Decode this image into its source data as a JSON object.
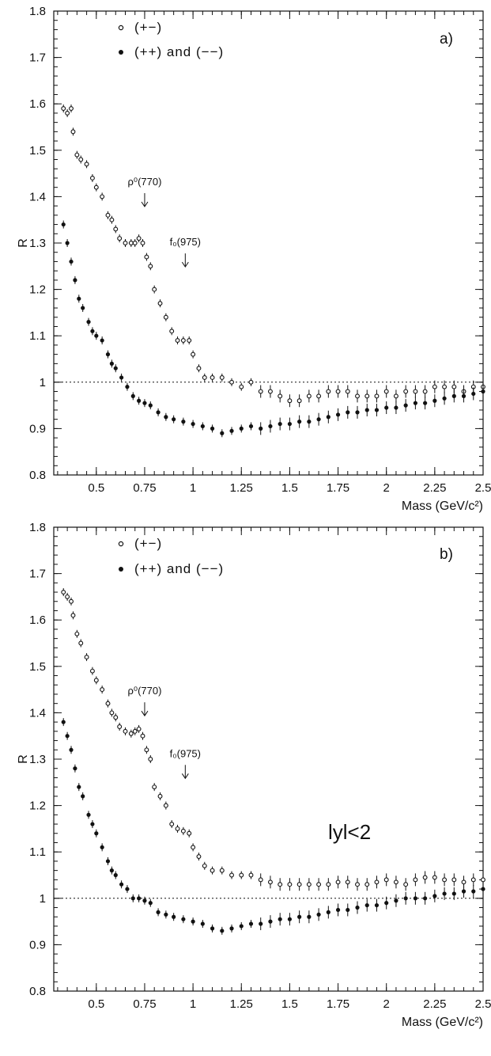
{
  "chart_data": [
    {
      "type": "scatter",
      "panel_label": "a)",
      "ylabel": "R",
      "xlabel": "Mass (GeV/c²)",
      "xlim": [
        0.28,
        2.5
      ],
      "ylim": [
        0.8,
        1.8
      ],
      "x_ticks": [
        "0.5",
        "0.75",
        "1",
        "1.25",
        "1.5",
        "1.75",
        "2",
        "2.25",
        "2.5"
      ],
      "y_ticks": [
        "0.8",
        "0.9",
        "1",
        "1.1",
        "1.2",
        "1.3",
        "1.4",
        "1.5",
        "1.6",
        "1.7",
        "1.8"
      ],
      "reference_line": 1,
      "annotations": [
        {
          "text": "ρ⁰(770)",
          "x": 0.75,
          "y_arrow": 1.37
        },
        {
          "text": "f₀(975)",
          "x": 0.96,
          "y_arrow": 1.24
        }
      ],
      "series": [
        {
          "name": "(+−)",
          "marker": "open",
          "points": [
            [
              0.33,
              1.59
            ],
            [
              0.35,
              1.58
            ],
            [
              0.37,
              1.59
            ],
            [
              0.38,
              1.54
            ],
            [
              0.4,
              1.49
            ],
            [
              0.42,
              1.48
            ],
            [
              0.45,
              1.47
            ],
            [
              0.48,
              1.44
            ],
            [
              0.5,
              1.42
            ],
            [
              0.53,
              1.4
            ],
            [
              0.56,
              1.36
            ],
            [
              0.58,
              1.35
            ],
            [
              0.6,
              1.33
            ],
            [
              0.62,
              1.31
            ],
            [
              0.65,
              1.3
            ],
            [
              0.68,
              1.3
            ],
            [
              0.7,
              1.3
            ],
            [
              0.72,
              1.31
            ],
            [
              0.74,
              1.3
            ],
            [
              0.76,
              1.27
            ],
            [
              0.78,
              1.25
            ],
            [
              0.8,
              1.2
            ],
            [
              0.83,
              1.17
            ],
            [
              0.86,
              1.14
            ],
            [
              0.89,
              1.11
            ],
            [
              0.92,
              1.09
            ],
            [
              0.95,
              1.09
            ],
            [
              0.98,
              1.09
            ],
            [
              1.0,
              1.06
            ],
            [
              1.03,
              1.03
            ],
            [
              1.06,
              1.01
            ],
            [
              1.1,
              1.01
            ],
            [
              1.15,
              1.01
            ],
            [
              1.2,
              1.0
            ],
            [
              1.25,
              0.99
            ],
            [
              1.3,
              1.0
            ],
            [
              1.35,
              0.98
            ],
            [
              1.4,
              0.98
            ],
            [
              1.45,
              0.97
            ],
            [
              1.5,
              0.96
            ],
            [
              1.55,
              0.96
            ],
            [
              1.6,
              0.97
            ],
            [
              1.65,
              0.97
            ],
            [
              1.7,
              0.98
            ],
            [
              1.75,
              0.98
            ],
            [
              1.8,
              0.98
            ],
            [
              1.85,
              0.97
            ],
            [
              1.9,
              0.97
            ],
            [
              1.95,
              0.97
            ],
            [
              2.0,
              0.98
            ],
            [
              2.05,
              0.97
            ],
            [
              2.1,
              0.98
            ],
            [
              2.15,
              0.98
            ],
            [
              2.2,
              0.98
            ],
            [
              2.25,
              0.99
            ],
            [
              2.3,
              0.99
            ],
            [
              2.35,
              0.99
            ],
            [
              2.4,
              0.98
            ],
            [
              2.45,
              0.99
            ],
            [
              2.5,
              0.99
            ]
          ]
        },
        {
          "name": "(++) and (−−)",
          "marker": "filled",
          "points": [
            [
              0.33,
              1.34
            ],
            [
              0.35,
              1.3
            ],
            [
              0.37,
              1.26
            ],
            [
              0.39,
              1.22
            ],
            [
              0.41,
              1.18
            ],
            [
              0.43,
              1.16
            ],
            [
              0.46,
              1.13
            ],
            [
              0.48,
              1.11
            ],
            [
              0.5,
              1.1
            ],
            [
              0.53,
              1.09
            ],
            [
              0.56,
              1.06
            ],
            [
              0.58,
              1.04
            ],
            [
              0.6,
              1.03
            ],
            [
              0.63,
              1.01
            ],
            [
              0.66,
              0.99
            ],
            [
              0.69,
              0.97
            ],
            [
              0.72,
              0.96
            ],
            [
              0.75,
              0.955
            ],
            [
              0.78,
              0.95
            ],
            [
              0.82,
              0.935
            ],
            [
              0.86,
              0.925
            ],
            [
              0.9,
              0.92
            ],
            [
              0.95,
              0.915
            ],
            [
              1.0,
              0.91
            ],
            [
              1.05,
              0.905
            ],
            [
              1.1,
              0.9
            ],
            [
              1.15,
              0.89
            ],
            [
              1.2,
              0.895
            ],
            [
              1.25,
              0.9
            ],
            [
              1.3,
              0.905
            ],
            [
              1.35,
              0.9
            ],
            [
              1.4,
              0.905
            ],
            [
              1.45,
              0.91
            ],
            [
              1.5,
              0.91
            ],
            [
              1.55,
              0.915
            ],
            [
              1.6,
              0.915
            ],
            [
              1.65,
              0.92
            ],
            [
              1.7,
              0.925
            ],
            [
              1.75,
              0.93
            ],
            [
              1.8,
              0.935
            ],
            [
              1.85,
              0.935
            ],
            [
              1.9,
              0.94
            ],
            [
              1.95,
              0.94
            ],
            [
              2.0,
              0.945
            ],
            [
              2.05,
              0.945
            ],
            [
              2.1,
              0.95
            ],
            [
              2.15,
              0.955
            ],
            [
              2.2,
              0.955
            ],
            [
              2.25,
              0.96
            ],
            [
              2.3,
              0.965
            ],
            [
              2.35,
              0.97
            ],
            [
              2.4,
              0.97
            ],
            [
              2.45,
              0.975
            ],
            [
              2.5,
              0.98
            ]
          ]
        }
      ]
    },
    {
      "type": "scatter",
      "panel_label": "b)",
      "ylabel": "R",
      "xlabel": "Mass (GeV/c²)",
      "xlim": [
        0.28,
        2.5
      ],
      "ylim": [
        0.8,
        1.8
      ],
      "x_ticks": [
        "0.5",
        "0.75",
        "1",
        "1.25",
        "1.5",
        "1.75",
        "2",
        "2.25",
        "2.5"
      ],
      "y_ticks": [
        "0.8",
        "0.9",
        "1",
        "1.1",
        "1.2",
        "1.3",
        "1.4",
        "1.5",
        "1.6",
        "1.7",
        "1.8"
      ],
      "reference_line": 1,
      "cut_label": "lyl<2",
      "annotations": [
        {
          "text": "ρ⁰(770)",
          "x": 0.75,
          "y_arrow": 1.385
        },
        {
          "text": "f₀(975)",
          "x": 0.96,
          "y_arrow": 1.25
        }
      ],
      "series": [
        {
          "name": "(+−)",
          "marker": "open",
          "points": [
            [
              0.33,
              1.66
            ],
            [
              0.35,
              1.65
            ],
            [
              0.37,
              1.64
            ],
            [
              0.38,
              1.61
            ],
            [
              0.4,
              1.57
            ],
            [
              0.42,
              1.55
            ],
            [
              0.45,
              1.52
            ],
            [
              0.48,
              1.49
            ],
            [
              0.5,
              1.47
            ],
            [
              0.53,
              1.45
            ],
            [
              0.56,
              1.42
            ],
            [
              0.58,
              1.4
            ],
            [
              0.6,
              1.39
            ],
            [
              0.62,
              1.37
            ],
            [
              0.65,
              1.36
            ],
            [
              0.68,
              1.355
            ],
            [
              0.7,
              1.36
            ],
            [
              0.72,
              1.365
            ],
            [
              0.74,
              1.35
            ],
            [
              0.76,
              1.32
            ],
            [
              0.78,
              1.3
            ],
            [
              0.8,
              1.24
            ],
            [
              0.83,
              1.22
            ],
            [
              0.86,
              1.2
            ],
            [
              0.89,
              1.16
            ],
            [
              0.92,
              1.15
            ],
            [
              0.95,
              1.145
            ],
            [
              0.98,
              1.14
            ],
            [
              1.0,
              1.11
            ],
            [
              1.03,
              1.09
            ],
            [
              1.06,
              1.07
            ],
            [
              1.1,
              1.06
            ],
            [
              1.15,
              1.06
            ],
            [
              1.2,
              1.05
            ],
            [
              1.25,
              1.05
            ],
            [
              1.3,
              1.05
            ],
            [
              1.35,
              1.04
            ],
            [
              1.4,
              1.035
            ],
            [
              1.45,
              1.03
            ],
            [
              1.5,
              1.03
            ],
            [
              1.55,
              1.03
            ],
            [
              1.6,
              1.03
            ],
            [
              1.65,
              1.03
            ],
            [
              1.7,
              1.03
            ],
            [
              1.75,
              1.035
            ],
            [
              1.8,
              1.035
            ],
            [
              1.85,
              1.03
            ],
            [
              1.9,
              1.03
            ],
            [
              1.95,
              1.035
            ],
            [
              2.0,
              1.04
            ],
            [
              2.05,
              1.035
            ],
            [
              2.1,
              1.03
            ],
            [
              2.15,
              1.04
            ],
            [
              2.2,
              1.045
            ],
            [
              2.25,
              1.045
            ],
            [
              2.3,
              1.04
            ],
            [
              2.35,
              1.04
            ],
            [
              2.4,
              1.035
            ],
            [
              2.45,
              1.04
            ],
            [
              2.5,
              1.04
            ]
          ]
        },
        {
          "name": "(++) and (−−)",
          "marker": "filled",
          "points": [
            [
              0.33,
              1.38
            ],
            [
              0.35,
              1.35
            ],
            [
              0.37,
              1.32
            ],
            [
              0.39,
              1.28
            ],
            [
              0.41,
              1.24
            ],
            [
              0.43,
              1.22
            ],
            [
              0.46,
              1.18
            ],
            [
              0.48,
              1.16
            ],
            [
              0.5,
              1.14
            ],
            [
              0.53,
              1.11
            ],
            [
              0.56,
              1.08
            ],
            [
              0.58,
              1.06
            ],
            [
              0.6,
              1.05
            ],
            [
              0.63,
              1.03
            ],
            [
              0.66,
              1.02
            ],
            [
              0.69,
              1.0
            ],
            [
              0.72,
              1.0
            ],
            [
              0.75,
              0.995
            ],
            [
              0.78,
              0.99
            ],
            [
              0.82,
              0.97
            ],
            [
              0.86,
              0.965
            ],
            [
              0.9,
              0.96
            ],
            [
              0.95,
              0.955
            ],
            [
              1.0,
              0.95
            ],
            [
              1.05,
              0.945
            ],
            [
              1.1,
              0.935
            ],
            [
              1.15,
              0.93
            ],
            [
              1.2,
              0.935
            ],
            [
              1.25,
              0.94
            ],
            [
              1.3,
              0.945
            ],
            [
              1.35,
              0.945
            ],
            [
              1.4,
              0.95
            ],
            [
              1.45,
              0.955
            ],
            [
              1.5,
              0.955
            ],
            [
              1.55,
              0.96
            ],
            [
              1.6,
              0.96
            ],
            [
              1.65,
              0.965
            ],
            [
              1.7,
              0.97
            ],
            [
              1.75,
              0.975
            ],
            [
              1.8,
              0.975
            ],
            [
              1.85,
              0.98
            ],
            [
              1.9,
              0.985
            ],
            [
              1.95,
              0.985
            ],
            [
              2.0,
              0.99
            ],
            [
              2.05,
              0.995
            ],
            [
              2.1,
              1.0
            ],
            [
              2.15,
              1.0
            ],
            [
              2.2,
              1.0
            ],
            [
              2.25,
              1.005
            ],
            [
              2.3,
              1.01
            ],
            [
              2.35,
              1.01
            ],
            [
              2.4,
              1.015
            ],
            [
              2.45,
              1.015
            ],
            [
              2.5,
              1.02
            ]
          ]
        }
      ]
    }
  ]
}
